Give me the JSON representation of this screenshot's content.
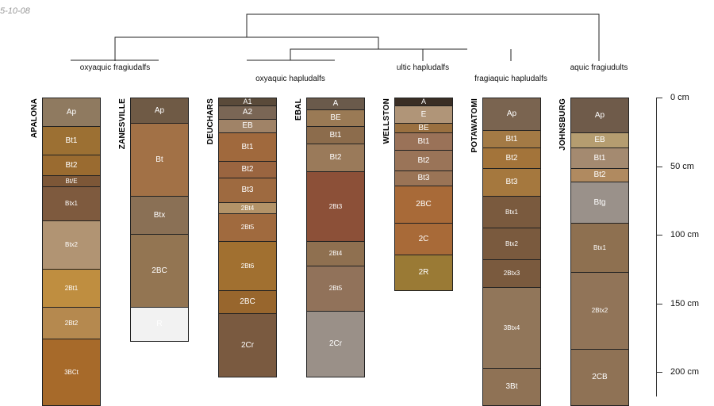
{
  "date_stamp": "5-10-08",
  "groups": [
    {
      "id": "oxyaquic_fragiudalfs",
      "label": "oxyaquic fragiudalfs"
    },
    {
      "id": "oxyaquic_hapludalfs",
      "label": "oxyaquic hapludalfs"
    },
    {
      "id": "ultic_hapludalfs",
      "label": "ultic hapludalfs"
    },
    {
      "id": "fragiaquic_hapludalfs",
      "label": "fragiaquic hapludalfs"
    },
    {
      "id": "aquic_fragiudults",
      "label": "aquic fragiudults"
    }
  ],
  "depth_axis": {
    "unit": "cm",
    "max_depth_cm": 220,
    "ticks": [
      "0 cm",
      "50 cm",
      "100 cm",
      "150 cm",
      "200 cm"
    ],
    "tick_values": [
      0,
      50,
      100,
      150,
      200
    ]
  },
  "profiles": [
    {
      "name": "APALONA",
      "horizons": [
        {
          "name": "Ap",
          "top": 0,
          "bottom": 20,
          "color": "#8f7a60"
        },
        {
          "name": "Bt1",
          "top": 20,
          "bottom": 41,
          "color": "#9c7033"
        },
        {
          "name": "Bt2",
          "top": 41,
          "bottom": 56,
          "color": "#9a6b30"
        },
        {
          "name": "Bt/E",
          "top": 56,
          "bottom": 64,
          "color": "#7d5737"
        },
        {
          "name": "Btx1",
          "top": 64,
          "bottom": 89,
          "color": "#7e5a3e"
        },
        {
          "name": "Btx2",
          "top": 89,
          "bottom": 124,
          "color": "#b19473"
        },
        {
          "name": "2Bt1",
          "top": 124,
          "bottom": 152,
          "color": "#bf8e40"
        },
        {
          "name": "2Bt2",
          "top": 152,
          "bottom": 175,
          "color": "#b5894f"
        },
        {
          "name": "3BCt",
          "top": 175,
          "bottom": 230,
          "color": "#a76a2a"
        }
      ]
    },
    {
      "name": "ZANESVILLE",
      "horizons": [
        {
          "name": "Ap",
          "top": 0,
          "bottom": 18,
          "color": "#6f5a45"
        },
        {
          "name": "Bt",
          "top": 18,
          "bottom": 71,
          "color": "#a27146"
        },
        {
          "name": "Btx",
          "top": 71,
          "bottom": 99,
          "color": "#8a7055"
        },
        {
          "name": "2BC",
          "top": 99,
          "bottom": 152,
          "color": "#937552"
        },
        {
          "name": "R",
          "top": 152,
          "bottom": 177,
          "color": "#f2f2f2"
        }
      ]
    },
    {
      "name": "DEUCHARS",
      "horizons": [
        {
          "name": "A1",
          "top": 0,
          "bottom": 5,
          "color": "#5a4a3a"
        },
        {
          "name": "A2",
          "top": 5,
          "bottom": 15,
          "color": "#7a6655"
        },
        {
          "name": "EB",
          "top": 15,
          "bottom": 25,
          "color": "#a08367"
        },
        {
          "name": "Bt1",
          "top": 25,
          "bottom": 46,
          "color": "#a0693d"
        },
        {
          "name": "Bt2",
          "top": 46,
          "bottom": 58,
          "color": "#9a6540"
        },
        {
          "name": "Bt3",
          "top": 58,
          "bottom": 76,
          "color": "#9e6a40"
        },
        {
          "name": "2Bt4",
          "top": 76,
          "bottom": 84,
          "color": "#b39368"
        },
        {
          "name": "2Bt5",
          "top": 84,
          "bottom": 104,
          "color": "#a06a3e"
        },
        {
          "name": "2Bt6",
          "top": 104,
          "bottom": 140,
          "color": "#a17030"
        },
        {
          "name": "2BC",
          "top": 140,
          "bottom": 157,
          "color": "#98662d"
        },
        {
          "name": "2Cr",
          "top": 157,
          "bottom": 203,
          "color": "#7a5a40"
        }
      ]
    },
    {
      "name": "EBAL",
      "horizons": [
        {
          "name": "A",
          "top": 0,
          "bottom": 8,
          "color": "#6a5a4b"
        },
        {
          "name": "BE",
          "top": 8,
          "bottom": 20,
          "color": "#9a7a55"
        },
        {
          "name": "Bt1",
          "top": 20,
          "bottom": 33,
          "color": "#8c6c4c"
        },
        {
          "name": "Bt2",
          "top": 33,
          "bottom": 53,
          "color": "#9a7a5a"
        },
        {
          "name": "2Bt3",
          "top": 53,
          "bottom": 104,
          "color": "#8c5038"
        },
        {
          "name": "2Bt4",
          "top": 104,
          "bottom": 122,
          "color": "#8f7050"
        },
        {
          "name": "2Bt5",
          "top": 122,
          "bottom": 155,
          "color": "#91725a"
        },
        {
          "name": "2Cr",
          "top": 155,
          "bottom": 203,
          "color": "#9a9088"
        }
      ]
    },
    {
      "name": "WELLSTON",
      "horizons": [
        {
          "name": "A",
          "top": 0,
          "bottom": 5,
          "color": "#3a2e25"
        },
        {
          "name": "E",
          "top": 5,
          "bottom": 18,
          "color": "#b09578"
        },
        {
          "name": "BE",
          "top": 18,
          "bottom": 25,
          "color": "#9a7040"
        },
        {
          "name": "Bt1",
          "top": 25,
          "bottom": 38,
          "color": "#9a7258"
        },
        {
          "name": "Bt2",
          "top": 38,
          "bottom": 53,
          "color": "#9a7458"
        },
        {
          "name": "Bt3",
          "top": 53,
          "bottom": 64,
          "color": "#9a7456"
        },
        {
          "name": "2BC",
          "top": 64,
          "bottom": 91,
          "color": "#a86a38"
        },
        {
          "name": "2C",
          "top": 91,
          "bottom": 114,
          "color": "#a86a38"
        },
        {
          "name": "2R",
          "top": 114,
          "bottom": 140,
          "color": "#9a7a35"
        }
      ]
    },
    {
      "name": "POTAWATOMI",
      "horizons": [
        {
          "name": "Ap",
          "top": 0,
          "bottom": 23,
          "color": "#7a6450"
        },
        {
          "name": "Bt1",
          "top": 23,
          "bottom": 36,
          "color": "#a37a45"
        },
        {
          "name": "Bt2",
          "top": 36,
          "bottom": 51,
          "color": "#a3743a"
        },
        {
          "name": "Bt3",
          "top": 51,
          "bottom": 71,
          "color": "#a5783e"
        },
        {
          "name": "Btx1",
          "top": 71,
          "bottom": 94,
          "color": "#7a5a3e"
        },
        {
          "name": "Btx2",
          "top": 94,
          "bottom": 117,
          "color": "#7a5a3e"
        },
        {
          "name": "2Btx3",
          "top": 117,
          "bottom": 137,
          "color": "#7a5a3e"
        },
        {
          "name": "3Btx4",
          "top": 137,
          "bottom": 196,
          "color": "#91765a"
        },
        {
          "name": "3Bt",
          "top": 196,
          "bottom": 230,
          "color": "#8f7255"
        }
      ]
    },
    {
      "name": "JOHNSBURG",
      "horizons": [
        {
          "name": "Ap",
          "top": 0,
          "bottom": 25,
          "color": "#6f5b4a"
        },
        {
          "name": "EB",
          "top": 25,
          "bottom": 36,
          "color": "#b59d70"
        },
        {
          "name": "Bt1",
          "top": 36,
          "bottom": 51,
          "color": "#a48a70"
        },
        {
          "name": "Bt2",
          "top": 51,
          "bottom": 61,
          "color": "#b08a60"
        },
        {
          "name": "Btg",
          "top": 61,
          "bottom": 91,
          "color": "#9a918a"
        },
        {
          "name": "Btx1",
          "top": 91,
          "bottom": 127,
          "color": "#8e7050"
        },
        {
          "name": "2Btx2",
          "top": 127,
          "bottom": 183,
          "color": "#917458"
        },
        {
          "name": "2CB",
          "top": 183,
          "bottom": 230,
          "color": "#8f7255"
        }
      ]
    }
  ]
}
